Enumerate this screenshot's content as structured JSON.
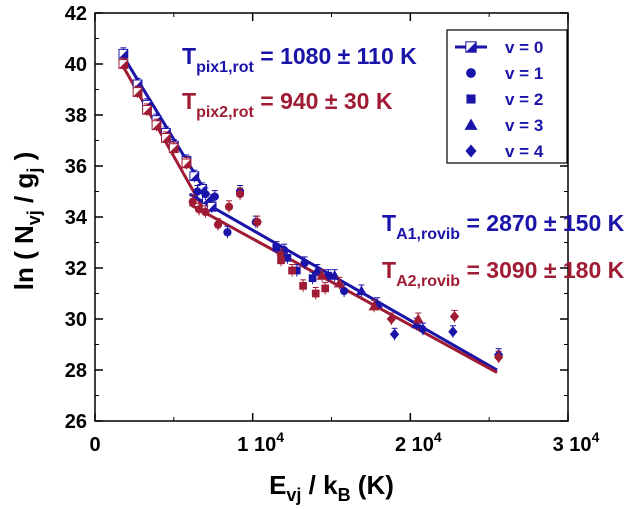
{
  "chart_data": {
    "type": "scatter",
    "xlim": [
      0,
      30000
    ],
    "ylim": [
      26,
      42
    ],
    "x_ticks": [
      {
        "value": 0,
        "base": "0",
        "exp": ""
      },
      {
        "value": 10000,
        "base": "1 10",
        "exp": "4"
      },
      {
        "value": 20000,
        "base": "2 10",
        "exp": "4"
      },
      {
        "value": 30000,
        "base": "3 10",
        "exp": "4"
      }
    ],
    "y_ticks": [
      26,
      28,
      30,
      32,
      34,
      36,
      38,
      40,
      42
    ],
    "xlabel": {
      "main": "E",
      "sub": "vj",
      "rest": " / k",
      "sub2": "B",
      "unit": " (K)"
    },
    "ylabel": {
      "main": "ln ( N",
      "sub": "vj",
      "mid": " / g",
      "sub2": "j",
      "end": " )"
    },
    "colors": {
      "pix1": "#1a14a8",
      "pix2": "#a01c34",
      "axis": "#000000"
    },
    "legend": {
      "position": "top-right",
      "entries": [
        {
          "label": "v = 0",
          "marker": "half-square-line"
        },
        {
          "label": "v = 1",
          "marker": "circle"
        },
        {
          "label": "v = 2",
          "marker": "square"
        },
        {
          "label": "v = 3",
          "marker": "triangle"
        },
        {
          "label": "v = 4",
          "marker": "diamond"
        }
      ]
    },
    "annotations": [
      {
        "id": "pix1",
        "sym": "T",
        "sub": "pix1,rot",
        "value": " = 1080 ± 110 K",
        "color": "#1a14a8"
      },
      {
        "id": "pix2",
        "sym": "T",
        "sub": "pix2,rot",
        "value": " = 940 ± 30 K",
        "color": "#a01c34"
      },
      {
        "id": "a1",
        "sym": "T",
        "sub": "A1,rovib",
        "value": " = 2870 ± 150 K",
        "color": "#1a14a8"
      },
      {
        "id": "a2",
        "sym": "T",
        "sub": "A2,rovib",
        "value": " = 3090 ± 180 K",
        "color": "#a01c34"
      }
    ],
    "fits": [
      {
        "name": "pix1,rot",
        "color": "#1a14a8",
        "x": [
          1700,
          7600
        ],
        "y": [
          40.4,
          34.4
        ]
      },
      {
        "name": "pix2,rot",
        "color": "#a01c34",
        "x": [
          1700,
          6800
        ],
        "y": [
          40.0,
          34.4
        ]
      },
      {
        "name": "A1,rovib",
        "color": "#1a14a8",
        "x": [
          6000,
          25500
        ],
        "y": [
          34.9,
          28.0
        ]
      },
      {
        "name": "A2,rovib",
        "color": "#a01c34",
        "x": [
          6000,
          25500
        ],
        "y": [
          34.5,
          27.9
        ]
      }
    ],
    "series": [
      {
        "name": "pix1 v=0",
        "color": "#1a14a8",
        "marker": "half-square",
        "points": [
          [
            1800,
            40.4
          ],
          [
            2700,
            39.2
          ],
          [
            3300,
            38.4
          ],
          [
            3900,
            37.8
          ],
          [
            4500,
            37.3
          ],
          [
            5000,
            36.8
          ],
          [
            5800,
            36.2
          ],
          [
            6300,
            35.6
          ],
          [
            6800,
            35.1
          ],
          [
            7100,
            34.7
          ],
          [
            7400,
            34.4
          ]
        ]
      },
      {
        "name": "pix2 v=0",
        "color": "#a01c34",
        "marker": "half-square",
        "points": [
          [
            1800,
            40.0
          ],
          [
            2700,
            38.9
          ],
          [
            3300,
            38.2
          ],
          [
            3900,
            37.6
          ],
          [
            4500,
            37.1
          ],
          [
            5000,
            36.7
          ],
          [
            5800,
            36.1
          ]
        ]
      },
      {
        "name": "pix1 v=1",
        "color": "#1a14a8",
        "marker": "circle",
        "points": [
          [
            6500,
            35.0
          ],
          [
            7000,
            34.9
          ],
          [
            7600,
            34.8
          ],
          [
            8400,
            33.4
          ],
          [
            9200,
            35.0
          ],
          [
            10200,
            33.8
          ],
          [
            12000,
            32.7
          ],
          [
            13300,
            32.2
          ],
          [
            15800,
            31.1
          ]
        ]
      },
      {
        "name": "pix2 v=1",
        "color": "#a01c34",
        "marker": "circle",
        "points": [
          [
            6200,
            34.6
          ],
          [
            6600,
            34.3
          ],
          [
            7000,
            34.2
          ],
          [
            7800,
            33.7
          ],
          [
            8500,
            34.4
          ],
          [
            9200,
            34.9
          ],
          [
            10300,
            33.8
          ],
          [
            11800,
            32.5
          ]
        ]
      },
      {
        "name": "pix1 v=2",
        "color": "#1a14a8",
        "marker": "square",
        "points": [
          [
            11500,
            32.8
          ],
          [
            12200,
            32.4
          ],
          [
            12800,
            31.9
          ],
          [
            13800,
            31.6
          ],
          [
            14800,
            31.7
          ]
        ]
      },
      {
        "name": "pix2 v=2",
        "color": "#a01c34",
        "marker": "square",
        "points": [
          [
            11800,
            32.3
          ],
          [
            12500,
            31.9
          ],
          [
            13200,
            31.3
          ],
          [
            14000,
            31.0
          ],
          [
            14600,
            31.2
          ]
        ]
      },
      {
        "name": "pix1 v=3",
        "color": "#1a14a8",
        "marker": "triangle",
        "points": [
          [
            14100,
            31.9
          ],
          [
            15200,
            31.7
          ],
          [
            16900,
            31.1
          ],
          [
            17900,
            30.6
          ],
          [
            20400,
            29.8
          ]
        ]
      },
      {
        "name": "pix2 v=3",
        "color": "#a01c34",
        "marker": "triangle",
        "points": [
          [
            14400,
            31.7
          ],
          [
            15500,
            31.4
          ],
          [
            17700,
            30.5
          ],
          [
            20500,
            30.0
          ]
        ]
      },
      {
        "name": "pix1 v=4",
        "color": "#1a14a8",
        "marker": "diamond",
        "points": [
          [
            19000,
            29.4
          ],
          [
            20800,
            29.6
          ],
          [
            22700,
            29.5
          ],
          [
            25600,
            28.6
          ]
        ]
      },
      {
        "name": "pix2 v=4",
        "color": "#a01c34",
        "marker": "diamond",
        "points": [
          [
            18800,
            30.0
          ],
          [
            22800,
            30.1
          ],
          [
            25600,
            28.5
          ]
        ]
      }
    ]
  }
}
